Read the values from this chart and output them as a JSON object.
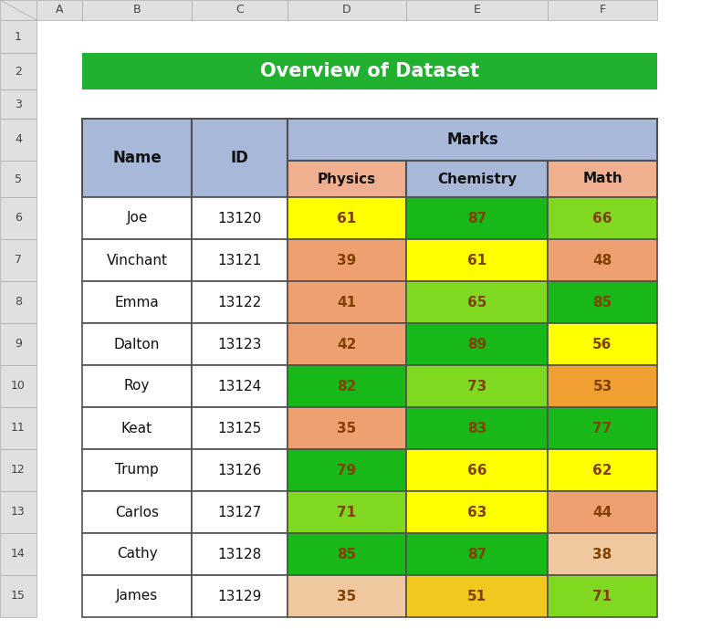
{
  "title": "Overview of Dataset",
  "title_bg": "#22B030",
  "title_color": "#FFFFFF",
  "header_bg": "#A8B8D8",
  "subheader_physics_bg": "#F0B090",
  "subheader_chemistry_bg": "#A8B8D8",
  "subheader_math_bg": "#F0B090",
  "names": [
    "Joe",
    "Vinchant",
    "Emma",
    "Dalton",
    "Roy",
    "Keat",
    "Trump",
    "Carlos",
    "Cathy",
    "James"
  ],
  "ids": [
    "13120",
    "13121",
    "13122",
    "13123",
    "13124",
    "13125",
    "13126",
    "13127",
    "13128",
    "13129"
  ],
  "physics": [
    61,
    39,
    41,
    42,
    82,
    35,
    79,
    71,
    85,
    35
  ],
  "chemistry": [
    87,
    61,
    65,
    89,
    73,
    83,
    66,
    63,
    87,
    51
  ],
  "math": [
    66,
    48,
    85,
    56,
    53,
    77,
    62,
    44,
    38,
    71
  ],
  "physics_colors": [
    "#FFFF00",
    "#EFA070",
    "#EFA070",
    "#EFA070",
    "#18B818",
    "#EFA070",
    "#18B818",
    "#80D820",
    "#18B818",
    "#EFC8A0"
  ],
  "chemistry_colors": [
    "#18B818",
    "#FFFF00",
    "#80D820",
    "#18B818",
    "#80D820",
    "#18B818",
    "#FFFF00",
    "#FFFF00",
    "#18B818",
    "#F0C820"
  ],
  "math_colors": [
    "#80D820",
    "#EFA070",
    "#18B818",
    "#FFFF00",
    "#F0A030",
    "#18B818",
    "#FFFF00",
    "#EFA070",
    "#EFC8A0",
    "#80D820"
  ],
  "cell_text_color": "#804000",
  "name_text_color": "#111111",
  "header_text_color": "#111111",
  "bg_color": "#FFFFFF",
  "grid_color": "#505050",
  "excel_header_bg": "#E0E0E0",
  "excel_row_num_color": "#444444",
  "col_letters": [
    "A",
    "B",
    "C",
    "D",
    "E",
    "F"
  ],
  "row_numbers": [
    1,
    2,
    3,
    4,
    5,
    6,
    7,
    8,
    9,
    10,
    11,
    12,
    13,
    14,
    15
  ]
}
